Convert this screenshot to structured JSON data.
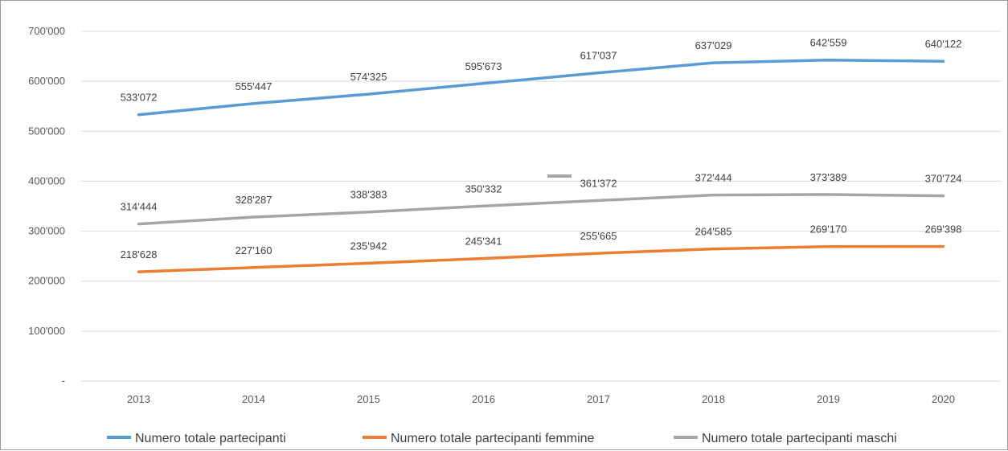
{
  "chart_data": {
    "type": "line",
    "title": "",
    "xlabel": "",
    "ylabel": "",
    "x": [
      "2013",
      "2014",
      "2015",
      "2016",
      "2017",
      "2018",
      "2019",
      "2020"
    ],
    "ylim": [
      0,
      700000
    ],
    "y_ticks": [
      {
        "value": 0,
        "label": "-"
      },
      {
        "value": 100000,
        "label": "100'000"
      },
      {
        "value": 200000,
        "label": "200'000"
      },
      {
        "value": 300000,
        "label": "300'000"
      },
      {
        "value": 400000,
        "label": "400'000"
      },
      {
        "value": 500000,
        "label": "500'000"
      },
      {
        "value": 600000,
        "label": "600'000"
      },
      {
        "value": 700000,
        "label": "700'000"
      }
    ],
    "grid": true,
    "legend_position": "bottom",
    "series": [
      {
        "name": "Numero totale partecipanti",
        "color": "#5B9BD5",
        "values": [
          533072,
          555447,
          574325,
          595673,
          617037,
          637029,
          642559,
          640122
        ],
        "labels": [
          "533'072",
          "555'447",
          "574'325",
          "595'673",
          "617'037",
          "637'029",
          "642'559",
          "640'122"
        ]
      },
      {
        "name": "Numero totale partecipanti femmine",
        "color": "#ED7D31",
        "values": [
          218628,
          227160,
          235942,
          245341,
          255665,
          264585,
          269170,
          269398
        ],
        "labels": [
          "218'628",
          "227'160",
          "235'942",
          "245'341",
          "255'665",
          "264'585",
          "269'170",
          "269'398"
        ]
      },
      {
        "name": "Numero totale partecipanti maschi",
        "color": "#A5A5A5",
        "values": [
          314444,
          328287,
          338383,
          350332,
          361372,
          372444,
          373389,
          370724
        ],
        "labels": [
          "314'444",
          "328'287",
          "338'383",
          "350'332",
          "361'372",
          "372'444",
          "373'389",
          "370'724"
        ]
      }
    ]
  }
}
